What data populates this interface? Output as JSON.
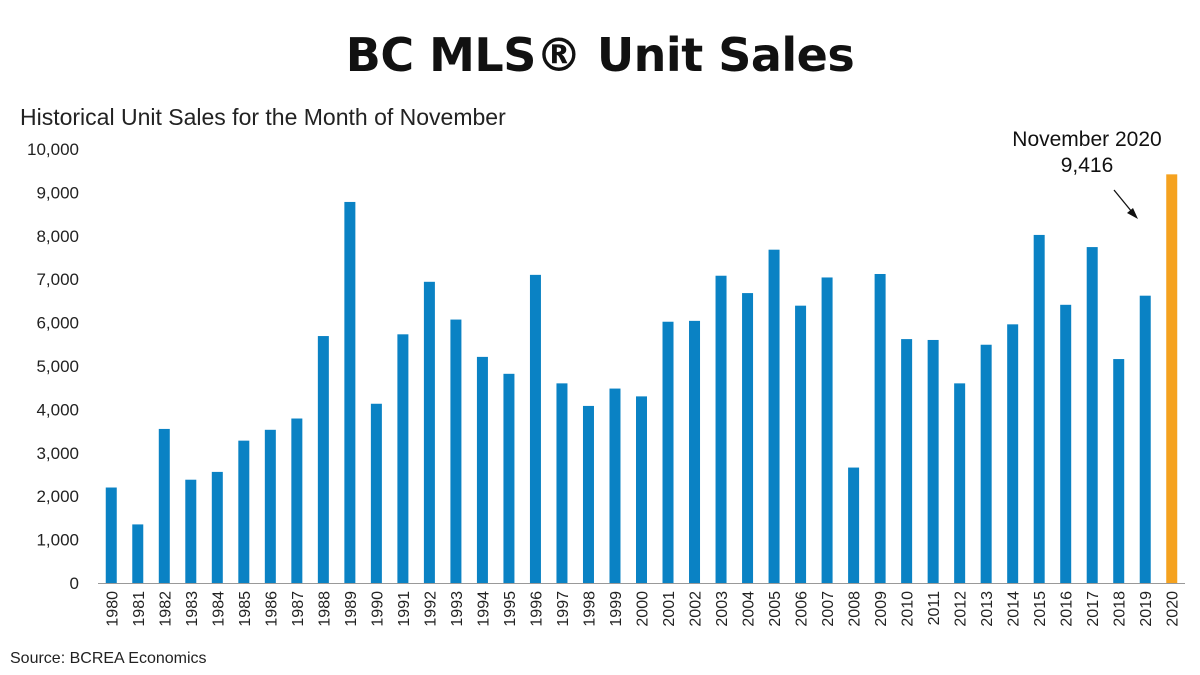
{
  "header": {
    "title": "BC MLS® Unit Sales",
    "subtitle": "Historical Unit Sales for the Month of November",
    "source": "Source: BCREA Economics"
  },
  "colors": {
    "bar": "#0a82c4",
    "highlight": "#f5a21f",
    "axis": "#999999"
  },
  "chart_data": {
    "type": "bar",
    "title": "BC MLS® Unit Sales",
    "subtitle": "Historical Unit Sales for the Month of November",
    "xlabel": "",
    "ylabel": "",
    "ylim": [
      0,
      10000
    ],
    "yticks": [
      0,
      1000,
      2000,
      3000,
      4000,
      5000,
      6000,
      7000,
      8000,
      9000,
      10000
    ],
    "ytick_labels": [
      "0",
      "1,000",
      "2,000",
      "3,000",
      "4,000",
      "5,000",
      "6,000",
      "7,000",
      "8,000",
      "9,000",
      "10,000"
    ],
    "grid": false,
    "categories": [
      "1980",
      "1981",
      "1982",
      "1983",
      "1984",
      "1985",
      "1986",
      "1987",
      "1988",
      "1989",
      "1990",
      "1991",
      "1992",
      "1993",
      "1994",
      "1995",
      "1996",
      "1997",
      "1998",
      "1999",
      "2000",
      "2001",
      "2002",
      "2003",
      "2004",
      "2005",
      "2006",
      "2007",
      "2008",
      "2009",
      "2010",
      "2011",
      "2012",
      "2013",
      "2014",
      "2015",
      "2016",
      "2017",
      "2018",
      "2019",
      "2020"
    ],
    "values": [
      2200,
      1350,
      3550,
      2380,
      2560,
      3280,
      3530,
      3790,
      5690,
      8780,
      4130,
      5730,
      6940,
      6070,
      5210,
      4820,
      7100,
      4600,
      4080,
      4480,
      4300,
      6020,
      6040,
      7080,
      6680,
      7680,
      6390,
      7040,
      2660,
      7120,
      5620,
      5600,
      4600,
      5490,
      5960,
      8020,
      6410,
      7740,
      5160,
      6620,
      9416
    ],
    "highlight_index": 40,
    "annotation": {
      "line1": "November 2020",
      "line2": "9,416"
    }
  }
}
